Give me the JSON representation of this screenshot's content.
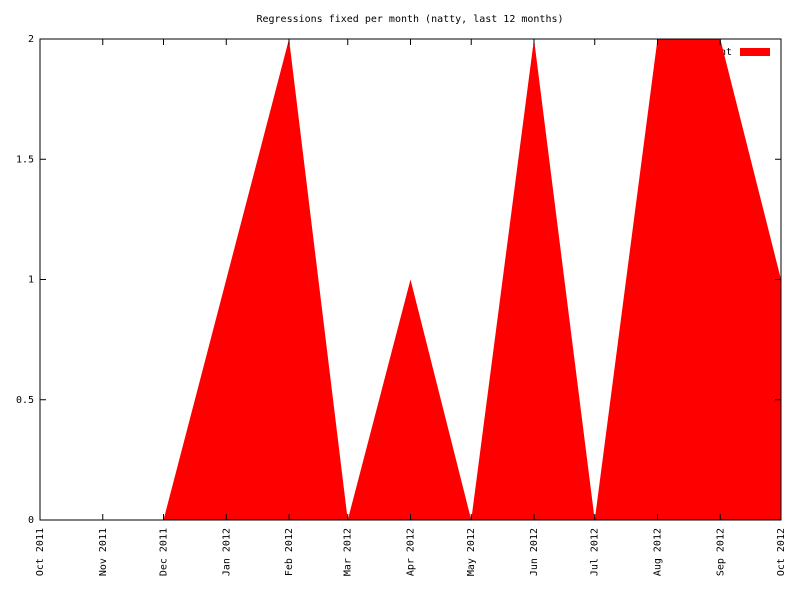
{
  "chart_data": {
    "type": "area",
    "title": "Regressions fixed per month (natty, last 12 months)",
    "x": [
      "Oct 2011",
      "Nov 2011",
      "Dec 2011",
      "Jan 2012",
      "Feb 2012",
      "Mar 2012",
      "Apr 2012",
      "May 2012",
      "Jun 2012",
      "Jul 2012",
      "Aug 2012",
      "Sep 2012",
      "Oct 2012"
    ],
    "series": [
      {
        "name": "Count",
        "color": "#ff0000",
        "values": [
          0,
          0,
          0,
          1,
          2,
          0,
          1,
          0,
          2,
          0,
          2,
          2,
          1
        ]
      }
    ],
    "ylim": [
      0,
      2
    ],
    "yticks": [
      0,
      0.5,
      1,
      1.5,
      2
    ],
    "legend": "top-right"
  }
}
